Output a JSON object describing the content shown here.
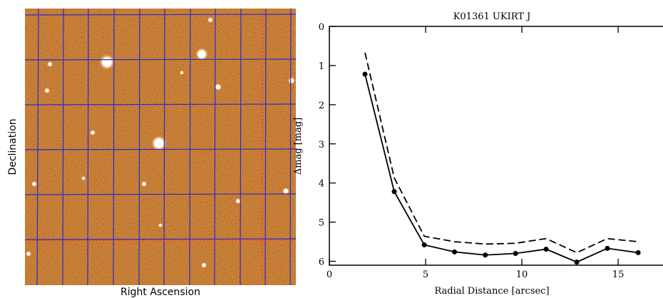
{
  "image": {
    "y_label": "Declination",
    "x_label": "Right Ascension"
  },
  "chart_data": {
    "type": "line",
    "title": "K01361 UKIRT J",
    "x_label": "Radial Distance [arcsec]",
    "y_label": "Δmag [mag]",
    "x": [
      1.85,
      3.37,
      4.93,
      6.5,
      8.1,
      9.67,
      11.26,
      12.85,
      14.44,
      16.04
    ],
    "series": [
      {
        "color": "#000000",
        "marker": true,
        "dash": false,
        "values": [
          1.22,
          4.22,
          5.58,
          5.76,
          5.84,
          5.8,
          5.69,
          6.02,
          5.67,
          5.78
        ]
      },
      {
        "color": "#000000",
        "marker": false,
        "dash": true,
        "values": [
          0.67,
          3.87,
          5.36,
          5.5,
          5.56,
          5.54,
          5.42,
          5.78,
          5.42,
          5.5
        ]
      }
    ],
    "xlim": [
      0,
      17.33
    ],
    "xticks": [
      0,
      5,
      10,
      15
    ],
    "ylim": [
      0,
      6.1
    ],
    "yticks": [
      0,
      1,
      2,
      3,
      4,
      5,
      6
    ],
    "y_inverted": true
  }
}
